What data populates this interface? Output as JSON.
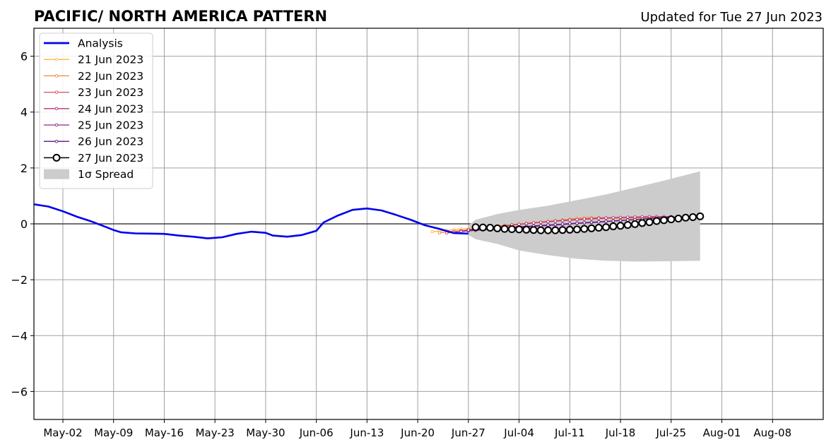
{
  "chart_data": {
    "type": "line",
    "title": "PACIFIC/ NORTH AMERICA PATTERN",
    "subtitle": "Updated for Tue 27 Jun 2023",
    "xlabel": "",
    "ylabel": "",
    "xlim": [
      "2023-04-28",
      "2023-08-15"
    ],
    "ylim": [
      -7,
      7
    ],
    "grid": true,
    "legend_position": "top-left",
    "x_ticks": [
      "May-02",
      "May-09",
      "May-16",
      "May-23",
      "May-30",
      "Jun-06",
      "Jun-13",
      "Jun-20",
      "Jun-27",
      "Jul-04",
      "Jul-11",
      "Jul-18",
      "Jul-25",
      "Aug-01",
      "Aug-08"
    ],
    "x_tick_dates": [
      "2023-05-02",
      "2023-05-09",
      "2023-05-16",
      "2023-05-23",
      "2023-05-30",
      "2023-06-06",
      "2023-06-13",
      "2023-06-20",
      "2023-06-27",
      "2023-07-04",
      "2023-07-11",
      "2023-07-18",
      "2023-07-25",
      "2023-08-01",
      "2023-08-08"
    ],
    "y_ticks": [
      -6,
      -4,
      -2,
      0,
      2,
      4,
      6
    ],
    "y_tick_labels": [
      "−6",
      "−4",
      "−2",
      "0",
      "2",
      "4",
      "6"
    ],
    "series": [
      {
        "name": "Analysis",
        "color": "#0000ee",
        "points": [
          [
            "2023-04-28",
            0.7
          ],
          [
            "2023-04-30",
            0.62
          ],
          [
            "2023-05-02",
            0.45
          ],
          [
            "2023-05-04",
            0.25
          ],
          [
            "2023-05-06",
            0.08
          ],
          [
            "2023-05-08",
            -0.12
          ],
          [
            "2023-05-09",
            -0.22
          ],
          [
            "2023-05-10",
            -0.3
          ],
          [
            "2023-05-12",
            -0.34
          ],
          [
            "2023-05-14",
            -0.35
          ],
          [
            "2023-05-16",
            -0.36
          ],
          [
            "2023-05-18",
            -0.42
          ],
          [
            "2023-05-20",
            -0.46
          ],
          [
            "2023-05-22",
            -0.52
          ],
          [
            "2023-05-24",
            -0.48
          ],
          [
            "2023-05-26",
            -0.36
          ],
          [
            "2023-05-28",
            -0.28
          ],
          [
            "2023-05-30",
            -0.32
          ],
          [
            "2023-05-31",
            -0.42
          ],
          [
            "2023-06-02",
            -0.46
          ],
          [
            "2023-06-04",
            -0.4
          ],
          [
            "2023-06-06",
            -0.25
          ],
          [
            "2023-06-07",
            0.05
          ],
          [
            "2023-06-09",
            0.3
          ],
          [
            "2023-06-11",
            0.5
          ],
          [
            "2023-06-13",
            0.55
          ],
          [
            "2023-06-15",
            0.48
          ],
          [
            "2023-06-17",
            0.32
          ],
          [
            "2023-06-19",
            0.15
          ],
          [
            "2023-06-21",
            -0.05
          ],
          [
            "2023-06-23",
            -0.18
          ],
          [
            "2023-06-25",
            -0.33
          ],
          [
            "2023-06-27",
            -0.35
          ]
        ]
      },
      {
        "name": "21 Jun 2023",
        "color": "#fbb73a",
        "start": "2023-06-22",
        "end": "2023-07-25",
        "y0": -0.28,
        "y1": 0.2,
        "shape": "early"
      },
      {
        "name": "22 Jun 2023",
        "color": "#f4863a",
        "start": "2023-06-23",
        "end": "2023-07-25",
        "y0": -0.32,
        "y1": 0.22,
        "shape": "early"
      },
      {
        "name": "23 Jun 2023",
        "color": "#de4968",
        "start": "2023-06-24",
        "end": "2023-07-25",
        "y0": -0.33,
        "y1": 0.25,
        "shape": "mid"
      },
      {
        "name": "24 Jun 2023",
        "color": "#b5367a",
        "start": "2023-06-25",
        "end": "2023-07-25",
        "y0": -0.3,
        "y1": 0.26,
        "shape": "mid"
      },
      {
        "name": "25 Jun 2023",
        "color": "#8c2981",
        "start": "2023-06-26",
        "end": "2023-07-25",
        "y0": -0.27,
        "y1": 0.24,
        "shape": "late"
      },
      {
        "name": "26 Jun 2023",
        "color": "#5a167d",
        "start": "2023-06-27",
        "end": "2023-07-26",
        "y0": -0.22,
        "y1": 0.25,
        "shape": "late"
      },
      {
        "name": "27 Jun 2023",
        "color": "#000000",
        "marker": "open-circle",
        "points": [
          [
            "2023-06-28",
            -0.12
          ],
          [
            "2023-06-29",
            -0.13
          ],
          [
            "2023-06-30",
            -0.14
          ],
          [
            "2023-07-01",
            -0.16
          ],
          [
            "2023-07-02",
            -0.18
          ],
          [
            "2023-07-03",
            -0.19
          ],
          [
            "2023-07-04",
            -0.2
          ],
          [
            "2023-07-05",
            -0.21
          ],
          [
            "2023-07-06",
            -0.22
          ],
          [
            "2023-07-07",
            -0.23
          ],
          [
            "2023-07-08",
            -0.23
          ],
          [
            "2023-07-09",
            -0.23
          ],
          [
            "2023-07-10",
            -0.22
          ],
          [
            "2023-07-11",
            -0.21
          ],
          [
            "2023-07-12",
            -0.2
          ],
          [
            "2023-07-13",
            -0.18
          ],
          [
            "2023-07-14",
            -0.16
          ],
          [
            "2023-07-15",
            -0.14
          ],
          [
            "2023-07-16",
            -0.12
          ],
          [
            "2023-07-17",
            -0.09
          ],
          [
            "2023-07-18",
            -0.07
          ],
          [
            "2023-07-19",
            -0.04
          ],
          [
            "2023-07-20",
            -0.01
          ],
          [
            "2023-07-21",
            0.03
          ],
          [
            "2023-07-22",
            0.06
          ],
          [
            "2023-07-23",
            0.1
          ],
          [
            "2023-07-24",
            0.13
          ],
          [
            "2023-07-25",
            0.16
          ],
          [
            "2023-07-26",
            0.19
          ],
          [
            "2023-07-27",
            0.22
          ],
          [
            "2023-07-28",
            0.24
          ],
          [
            "2023-07-29",
            0.27
          ]
        ]
      }
    ],
    "spread": {
      "name": "1σ Spread",
      "color": "#cccccc",
      "upper": [
        [
          "2023-06-27",
          -0.05
        ],
        [
          "2023-06-28",
          0.15
        ],
        [
          "2023-07-01",
          0.35
        ],
        [
          "2023-07-04",
          0.5
        ],
        [
          "2023-07-08",
          0.65
        ],
        [
          "2023-07-12",
          0.85
        ],
        [
          "2023-07-16",
          1.05
        ],
        [
          "2023-07-20",
          1.3
        ],
        [
          "2023-07-24",
          1.55
        ],
        [
          "2023-07-29",
          1.88
        ]
      ],
      "lower": [
        [
          "2023-06-27",
          -0.4
        ],
        [
          "2023-06-28",
          -0.55
        ],
        [
          "2023-07-01",
          -0.72
        ],
        [
          "2023-07-04",
          -0.95
        ],
        [
          "2023-07-08",
          -1.12
        ],
        [
          "2023-07-12",
          -1.25
        ],
        [
          "2023-07-16",
          -1.32
        ],
        [
          "2023-07-20",
          -1.35
        ],
        [
          "2023-07-24",
          -1.34
        ],
        [
          "2023-07-29",
          -1.32
        ]
      ]
    }
  }
}
